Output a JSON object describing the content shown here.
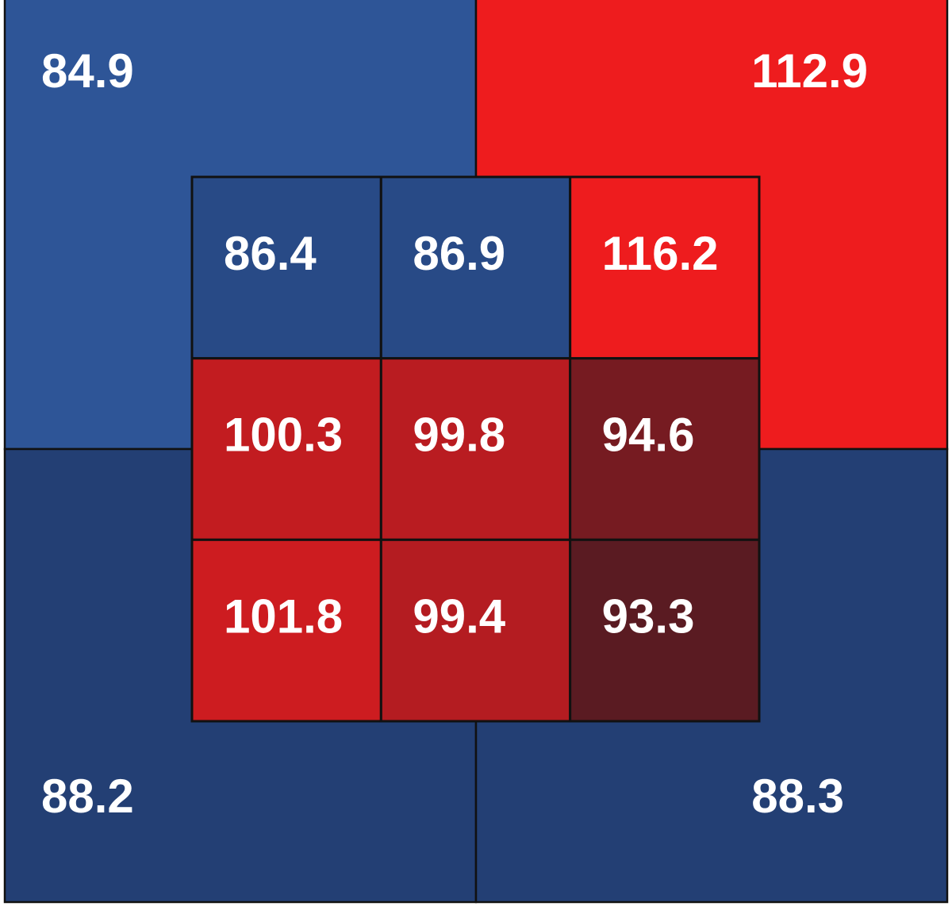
{
  "chart_data": {
    "type": "heatmap",
    "title": "",
    "outer_zones": [
      {
        "position": "top-left",
        "value": "84.9",
        "color": "#2e5597"
      },
      {
        "position": "top-right",
        "value": "112.9",
        "color": "#ee1c1e"
      },
      {
        "position": "bottom-left",
        "value": "88.2",
        "color": "#233f74"
      },
      {
        "position": "bottom-right",
        "value": "88.3",
        "color": "#233f74"
      }
    ],
    "inner_grid": {
      "rows": 3,
      "cols": 3,
      "cells": [
        {
          "row": 0,
          "col": 0,
          "value": "86.4",
          "color": "#284a86"
        },
        {
          "row": 0,
          "col": 1,
          "value": "86.9",
          "color": "#284a86"
        },
        {
          "row": 0,
          "col": 2,
          "value": "116.2",
          "color": "#ee1c1e"
        },
        {
          "row": 1,
          "col": 0,
          "value": "100.3",
          "color": "#c21c20"
        },
        {
          "row": 1,
          "col": 1,
          "value": "99.8",
          "color": "#b91c21"
        },
        {
          "row": 1,
          "col": 2,
          "value": "94.6",
          "color": "#761b21"
        },
        {
          "row": 2,
          "col": 0,
          "value": "101.8",
          "color": "#cd1c20"
        },
        {
          "row": 2,
          "col": 1,
          "value": "99.4",
          "color": "#b41c21"
        },
        {
          "row": 2,
          "col": 2,
          "value": "93.3",
          "color": "#5a1b22"
        }
      ]
    },
    "border_color": "#111111",
    "text_color": "#ffffff"
  }
}
